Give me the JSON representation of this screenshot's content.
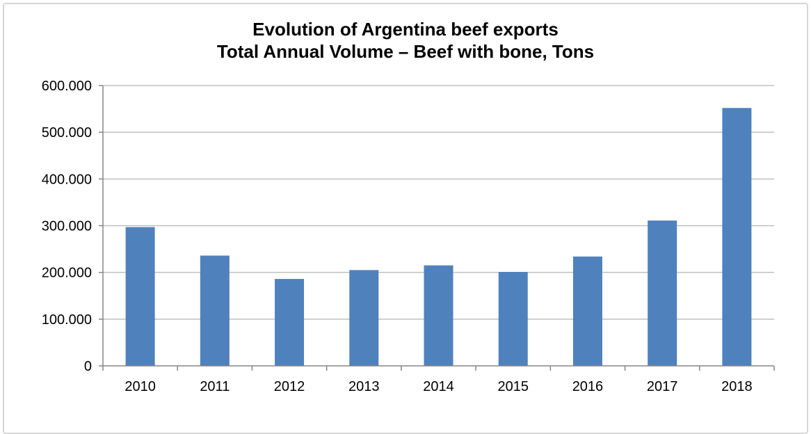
{
  "chart_data": {
    "type": "bar",
    "title": "Evolution of Argentina beef exports",
    "subtitle": "Total Annual Volume – Beef with bone, Tons",
    "xlabel": "",
    "ylabel": "",
    "categories": [
      "2010",
      "2011",
      "2012",
      "2013",
      "2014",
      "2015",
      "2016",
      "2017",
      "2018"
    ],
    "values": [
      297000,
      236000,
      186000,
      205000,
      215000,
      201000,
      234000,
      311000,
      552000
    ],
    "ylim": [
      0,
      600000
    ],
    "yticks": [
      0,
      100000,
      200000,
      300000,
      400000,
      500000,
      600000
    ],
    "ytick_labels": [
      "0",
      "100.000",
      "200.000",
      "300.000",
      "400.000",
      "500.000",
      "600.000"
    ],
    "grid": true,
    "legend": "none",
    "bar_color": "#4f81bd",
    "gridline_color": "#bfbfbf",
    "axis_color": "#868686"
  }
}
